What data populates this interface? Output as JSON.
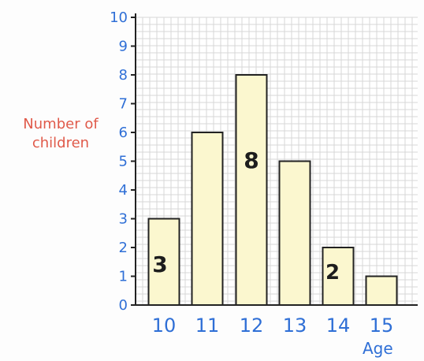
{
  "chart_data": {
    "type": "bar",
    "title": "",
    "xlabel": "Age",
    "ylabel": "Number of\nchildren",
    "categories": [
      "10",
      "11",
      "12",
      "13",
      "14",
      "15"
    ],
    "values": [
      3,
      6,
      8,
      5,
      2,
      1
    ],
    "ylim": [
      0,
      10
    ],
    "yticks": [
      "0",
      "1",
      "2",
      "3",
      "4",
      "5",
      "6",
      "7",
      "8",
      "9",
      "10"
    ],
    "annotations": [
      {
        "category": "10",
        "text": "3"
      },
      {
        "category": "12",
        "text": "8"
      },
      {
        "category": "14",
        "text": "2"
      }
    ],
    "grid": true,
    "colors": {
      "bar_fill": "#fbf7cf",
      "bar_stroke": "#222222",
      "axis": "#222222",
      "grid": "#d7d7d7",
      "tick_text": "#2f6fd6",
      "ylabel_text": "#e05a4a",
      "annotation_text": "#1d1d1d"
    }
  }
}
